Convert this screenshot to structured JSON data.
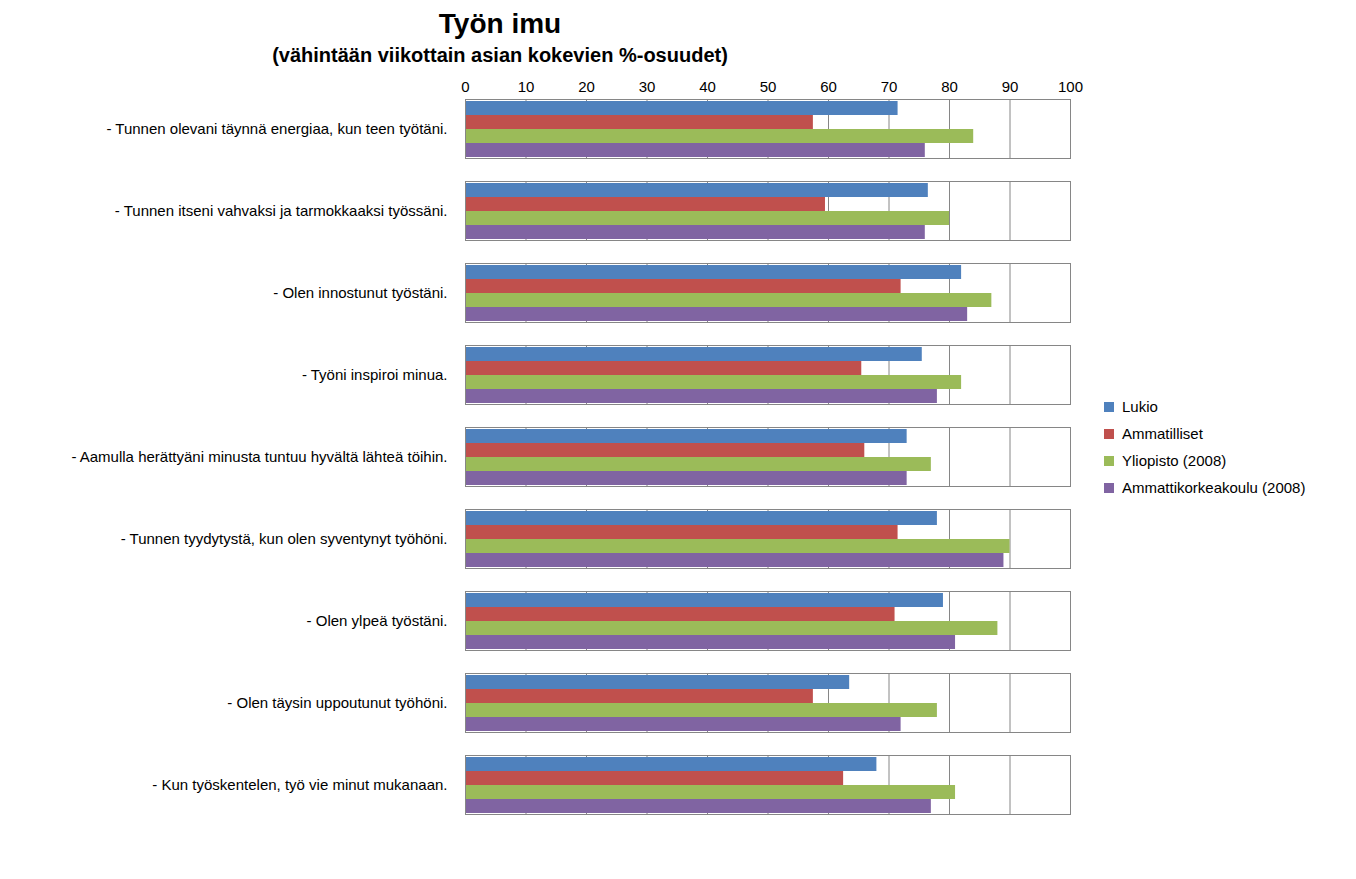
{
  "chart_data": {
    "type": "bar",
    "orientation": "horizontal",
    "title": "Työn imu",
    "subtitle": "(vähintään viikottain asian kokevien %-osuudet)",
    "categories": [
      "- Tunnen olevani täynnä energiaa, kun teen työtäni.",
      "- Tunnen itseni vahvaksi ja tarmokkaaksi työssäni.",
      "- Olen innostunut työstäni.",
      "- Työni inspiroi minua.",
      "- Aamulla herättyäni minusta tuntuu hyvältä lähteä töihin.",
      "- Tunnen tyydytystä, kun olen syventynyt työhöni.",
      "- Olen ylpeä työstäni.",
      "- Olen täysin uppoutunut työhöni.",
      "- Kun työskentelen, työ vie minut mukanaan."
    ],
    "series": [
      {
        "name": "Lukio",
        "color": "#4f81bd",
        "values": [
          71.5,
          76.5,
          82,
          75.5,
          73,
          78,
          79,
          63.5,
          68
        ]
      },
      {
        "name": "Ammatilliset",
        "color": "#c0504d",
        "values": [
          57.5,
          59.5,
          72,
          65.5,
          66,
          71.5,
          71,
          57.5,
          62.5
        ]
      },
      {
        "name": "Yliopisto (2008)",
        "color": "#9bbb59",
        "values": [
          84,
          80,
          87,
          82,
          77,
          90,
          88,
          78,
          81
        ]
      },
      {
        "name": "Ammattikorkeakoulu (2008)",
        "color": "#8064a2",
        "values": [
          76,
          76,
          83,
          78,
          73,
          89,
          81,
          72,
          77
        ]
      }
    ],
    "xlim": [
      0,
      100
    ],
    "xticks": [
      0,
      10,
      20,
      30,
      40,
      50,
      60,
      70,
      80,
      90,
      100
    ],
    "grid": true,
    "legend": "right"
  }
}
